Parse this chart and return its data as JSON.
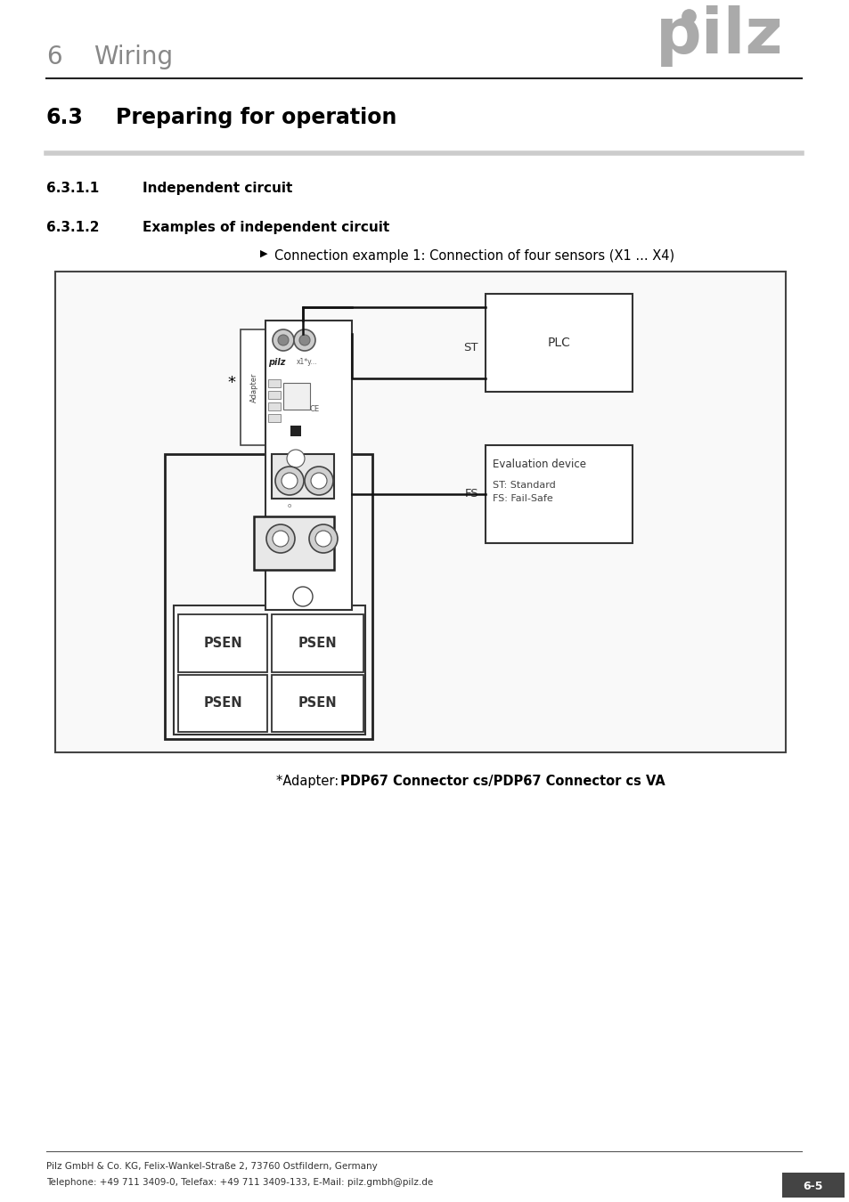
{
  "page_bg": "#ffffff",
  "header_number": "6",
  "header_title": "Wiring",
  "header_number_color": "#888888",
  "header_title_color": "#888888",
  "section_title": "6.3",
  "section_title_text": "Preparing for operation",
  "subsection1_num": "6.3.1.1",
  "subsection1_text": "Independent circuit",
  "subsection2_num": "6.3.1.2",
  "subsection2_text": "Examples of independent circuit",
  "bullet_text": "Connection example 1: Connection of four sensors (X1 ... X4)",
  "adapter_note_plain": "*Adapter: ",
  "adapter_note_bold": "PDP67 Connector cs/PDP67 Connector cs VA",
  "footer_left": "Pilz GmbH & Co. KG, Felix-Wankel-Straße 2, 73760 Ostfildern, Germany\nTelephone: +49 711 3409-0, Telefax: +49 711 3409-133, E-Mail: pilz.gmbh@pilz.de",
  "footer_right": "6-5",
  "pilz_logo_color": "#aaaaaa"
}
